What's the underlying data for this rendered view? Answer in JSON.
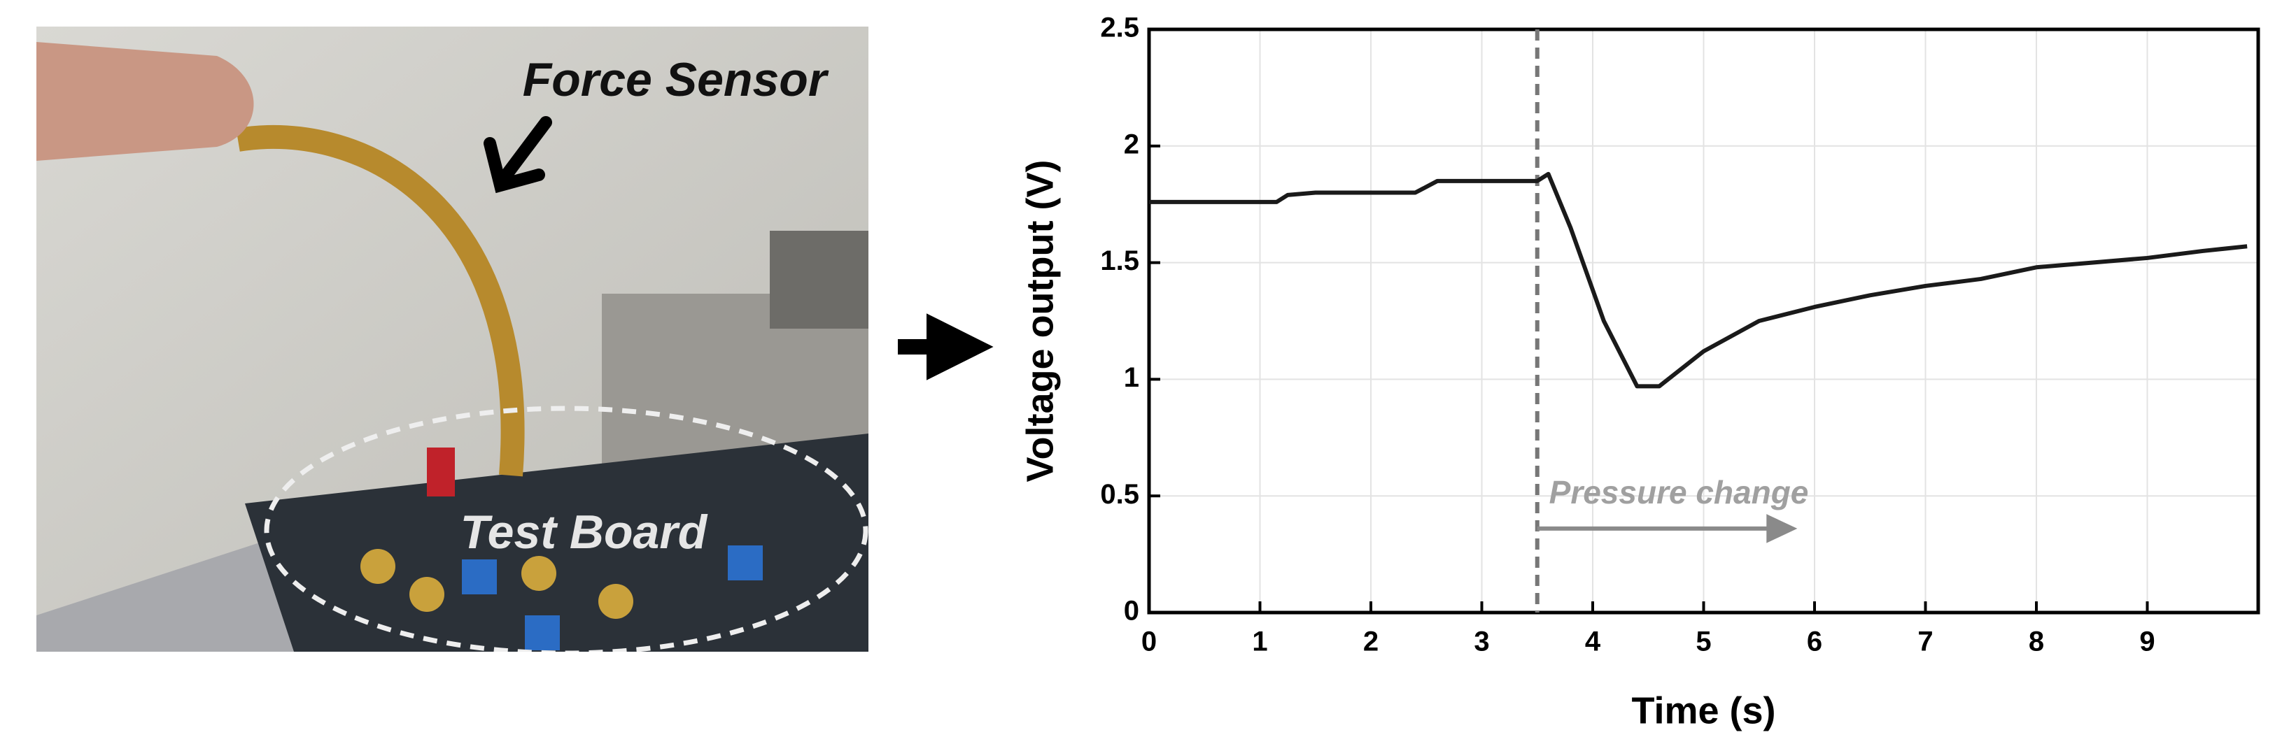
{
  "photo": {
    "labels": [
      "Force Sensor",
      "Test Board"
    ]
  },
  "chart_data": {
    "type": "line",
    "x_label": "Time (s)",
    "y_label": "Voltage output (V)",
    "x": [
      0,
      1.15,
      1.25,
      1.5,
      2.4,
      2.6,
      3.5,
      3.6,
      3.8,
      4.1,
      4.4,
      4.6,
      5.0,
      5.5,
      6.0,
      6.5,
      7.0,
      7.5,
      8.0,
      8.5,
      9.0,
      9.5,
      9.9
    ],
    "values": [
      1.76,
      1.76,
      1.79,
      1.8,
      1.8,
      1.85,
      1.85,
      1.88,
      1.65,
      1.25,
      0.97,
      0.97,
      1.12,
      1.25,
      1.31,
      1.36,
      1.4,
      1.43,
      1.48,
      1.5,
      1.52,
      1.55,
      1.57
    ],
    "color": "#1a1a1a",
    "xlim": [
      0,
      10
    ],
    "xticks": [
      0,
      1,
      2,
      3,
      4,
      5,
      6,
      7,
      8,
      9
    ],
    "ylim": [
      0,
      2.5
    ],
    "yticks": [
      0,
      0.5,
      1,
      1.5,
      2,
      2.5
    ],
    "grid": true,
    "vline": 3.5,
    "annotation": {
      "text": "Pressure change",
      "x": 3.5,
      "x_end": 5.8,
      "y": 0.36
    }
  }
}
